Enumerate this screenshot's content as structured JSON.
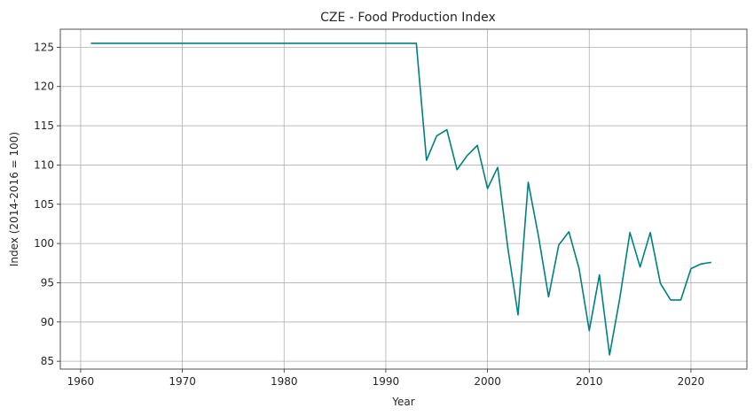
{
  "chart_data": {
    "type": "line",
    "title": "CZE - Food Production Index",
    "xlabel": "Year",
    "ylabel": "Index (2014-2016 = 100)",
    "xlim": [
      1958,
      2025.5
    ],
    "ylim": [
      84.0,
      127.3
    ],
    "xticks": [
      1960,
      1970,
      1980,
      1990,
      2000,
      2010,
      2020
    ],
    "yticks": [
      85,
      90,
      95,
      100,
      105,
      110,
      115,
      120,
      125
    ],
    "grid": true,
    "line_color": "#008080",
    "series": [
      {
        "x": [
          1961,
          1962,
          1963,
          1964,
          1965,
          1966,
          1967,
          1968,
          1969,
          1970,
          1971,
          1972,
          1973,
          1974,
          1975,
          1976,
          1977,
          1978,
          1979,
          1980,
          1981,
          1982,
          1983,
          1984,
          1985,
          1986,
          1987,
          1988,
          1989,
          1990,
          1991,
          1992,
          1993,
          1994,
          1995,
          1996,
          1997,
          1998,
          1999,
          2000,
          2001,
          2002,
          2003,
          2004,
          2005,
          2006,
          2007,
          2008,
          2009,
          2010,
          2011,
          2012,
          2013,
          2014,
          2015,
          2016,
          2017,
          2018,
          2019,
          2020,
          2021,
          2022
        ],
        "values": [
          125.5,
          125.5,
          125.5,
          125.5,
          125.5,
          125.5,
          125.5,
          125.5,
          125.5,
          125.5,
          125.5,
          125.5,
          125.5,
          125.5,
          125.5,
          125.5,
          125.5,
          125.5,
          125.5,
          125.5,
          125.5,
          125.5,
          125.5,
          125.5,
          125.5,
          125.5,
          125.5,
          125.5,
          125.5,
          125.5,
          125.5,
          125.5,
          125.5,
          110.6,
          113.7,
          114.5,
          109.4,
          111.2,
          112.5,
          107.0,
          109.7,
          99.4,
          90.9,
          107.8,
          101.0,
          93.2,
          99.8,
          101.5,
          96.8,
          88.9,
          96.0,
          85.8,
          93.0,
          101.4,
          97.0,
          101.4,
          94.9,
          92.8,
          92.8,
          96.8,
          97.4,
          97.6
        ]
      }
    ]
  }
}
